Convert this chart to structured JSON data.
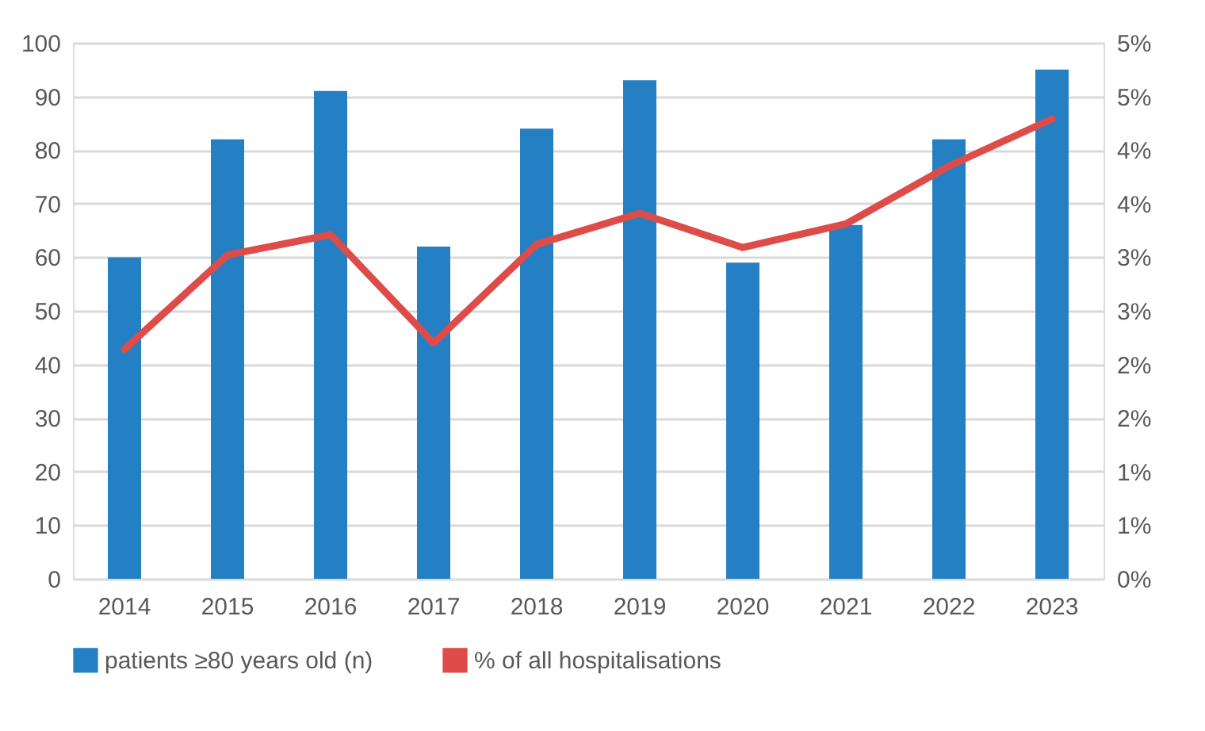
{
  "chart_data": {
    "type": "bar",
    "categories": [
      "2014",
      "2015",
      "2016",
      "2017",
      "2018",
      "2019",
      "2020",
      "2021",
      "2022",
      "2023"
    ],
    "series": [
      {
        "name": "patients ≥80 years old (n)",
        "color": "#2480c2",
        "values": [
          60,
          82,
          91,
          62,
          84,
          93,
          59,
          66,
          82,
          95
        ]
      },
      {
        "name": "% of all hospitalisations",
        "type": "line",
        "axis": "y2",
        "color": "#de4c4a",
        "values": [
          2.14,
          3.02,
          3.21,
          2.2,
          3.12,
          3.41,
          3.09,
          3.31,
          3.85,
          4.29
        ]
      }
    ],
    "ylim": [
      0,
      100
    ],
    "yticks": [
      0,
      10,
      20,
      30,
      40,
      50,
      60,
      70,
      80,
      90,
      100
    ],
    "y2lim": [
      0,
      5
    ],
    "y2ticks": [
      {
        "value": 0,
        "label": "0%"
      },
      {
        "value": 0.5,
        "label": "1%"
      },
      {
        "value": 1,
        "label": "1%"
      },
      {
        "value": 1.5,
        "label": "2%"
      },
      {
        "value": 2,
        "label": "2%"
      },
      {
        "value": 2.5,
        "label": "3%"
      },
      {
        "value": 3,
        "label": "3%"
      },
      {
        "value": 3.5,
        "label": "4%"
      },
      {
        "value": 4,
        "label": "4%"
      },
      {
        "value": 4.5,
        "label": "5%"
      },
      {
        "value": 5,
        "label": "5%"
      }
    ],
    "grid": "y",
    "legend": "bottom",
    "marker": "none",
    "line_style": "solid"
  }
}
